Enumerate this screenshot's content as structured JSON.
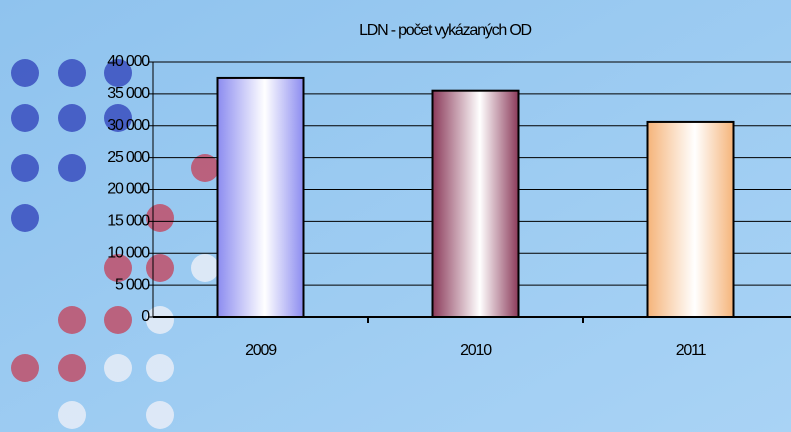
{
  "chart_data": {
    "type": "bar",
    "title": "LDN - počet vykázaných OD",
    "categories": [
      "2009",
      "2010",
      "2011"
    ],
    "values": [
      37500,
      35500,
      30600
    ],
    "colors": [
      "#8c8cf0",
      "#8b3a5a",
      "#f5b47a"
    ],
    "ylim": [
      0,
      40000
    ],
    "yticks": [
      {
        "value": 0,
        "label": "0"
      },
      {
        "value": 5000,
        "label": "5 000"
      },
      {
        "value": 10000,
        "label": "10 000"
      },
      {
        "value": 15000,
        "label": "15 000"
      },
      {
        "value": 20000,
        "label": "20 000"
      },
      {
        "value": 25000,
        "label": "25 000"
      },
      {
        "value": 30000,
        "label": "30 000"
      },
      {
        "value": 35000,
        "label": "35 000"
      },
      {
        "value": 40000,
        "label": "40 000"
      }
    ],
    "grid": true
  }
}
